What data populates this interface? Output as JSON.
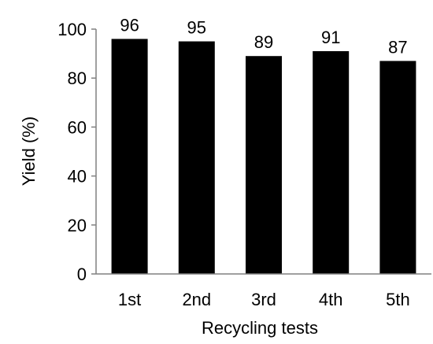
{
  "chart_data": {
    "type": "bar",
    "categories": [
      "1st",
      "2nd",
      "3rd",
      "4th",
      "5th"
    ],
    "values": [
      96,
      95,
      89,
      91,
      87
    ],
    "data_labels": [
      "96",
      "95",
      "89",
      "91",
      "87"
    ],
    "title": "",
    "xlabel": "Recycling tests",
    "ylabel": "Yield (%)",
    "ylim": [
      0,
      100
    ],
    "yticks": [
      0,
      20,
      40,
      60,
      80,
      100
    ],
    "grid": false,
    "legend": "none",
    "bar_color": "#000000",
    "axis_color": "#808080"
  }
}
